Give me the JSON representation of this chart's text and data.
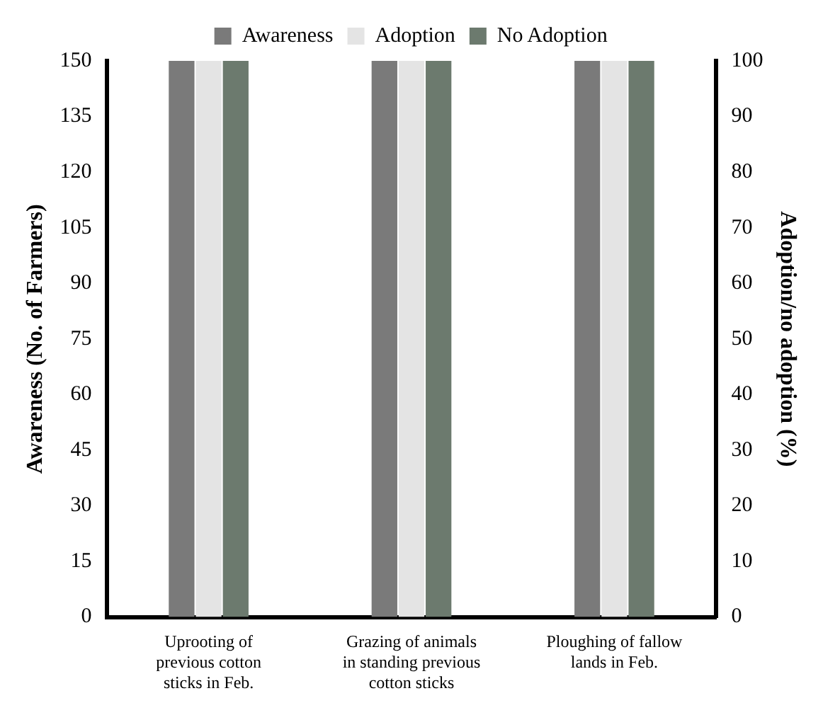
{
  "chart_data": {
    "type": "bar",
    "categories": [
      "Uprooting of previous cotton sticks in Feb.",
      "Grazing of animals in standing previous cotton sticks",
      "Ploughing of fallow lands in Feb."
    ],
    "series": [
      {
        "name": "Awareness",
        "color": "#7a7a7a",
        "values": [
          150,
          150,
          150
        ]
      },
      {
        "name": "Adoption",
        "color": "#e4e4e4",
        "values": [
          100,
          100,
          100
        ],
        "axis": "y2"
      },
      {
        "name": "No Adoption",
        "color": "#6c7a6e",
        "values": [
          100,
          100,
          100
        ],
        "axis": "y2"
      }
    ],
    "ylabel": "Awareness (No. of Farmers)",
    "y2label": "Adoption/no adoption (%)",
    "ylim": [
      0,
      150
    ],
    "yticks": [
      0,
      15,
      30,
      45,
      60,
      75,
      90,
      105,
      120,
      135,
      150
    ],
    "y2lim": [
      0,
      100
    ],
    "y2ticks": [
      0,
      10,
      20,
      30,
      40,
      50,
      60,
      70,
      80,
      90,
      100
    ],
    "grid": false,
    "legend": "top"
  }
}
